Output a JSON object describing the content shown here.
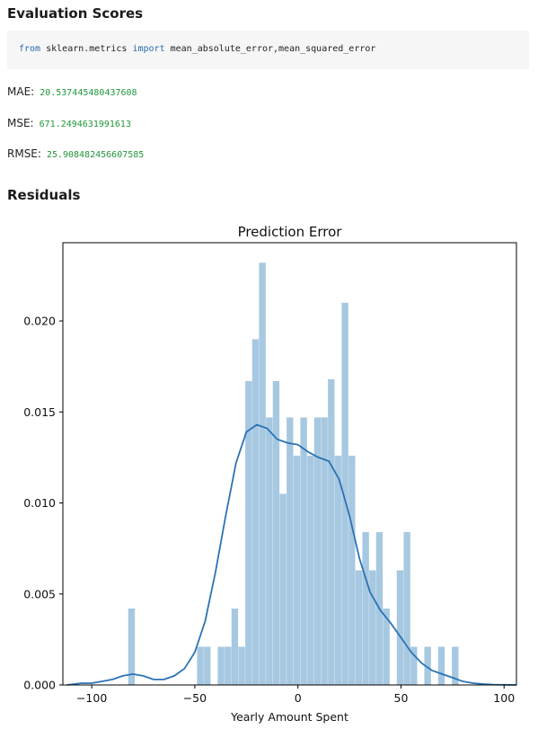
{
  "section_evaluation": {
    "title": "Evaluation Scores"
  },
  "code": {
    "kw_from": "from",
    "module": "sklearn.metrics",
    "kw_import": "import",
    "names": "mean_absolute_error,mean_squared_error"
  },
  "metrics": [
    {
      "label": "MAE:",
      "value": "20.537445480437608"
    },
    {
      "label": "MSE:",
      "value": "671.2494631991613"
    },
    {
      "label": "RMSE:",
      "value": "25.908482456607585"
    }
  ],
  "section_residuals": {
    "title": "Residuals"
  },
  "chart_data": {
    "type": "bar",
    "title": "Prediction Error",
    "xlabel": "Yearly Amount Spent",
    "ylabel": "",
    "xlim": [
      -114,
      106
    ],
    "ylim": [
      0,
      0.0243
    ],
    "xticks": [
      -100,
      -50,
      0,
      50,
      100
    ],
    "xtick_labels": [
      "−100",
      "−50",
      "0",
      "50",
      "100"
    ],
    "yticks": [
      0.0,
      0.005,
      0.01,
      0.015,
      0.02
    ],
    "ytick_labels": [
      "0.000",
      "0.005",
      "0.010",
      "0.015",
      "0.020"
    ],
    "grid": false,
    "bar_color": "#a7c8e1",
    "kde_color": "#2b73b3",
    "histogram": {
      "bin_edges": [
        -82.3,
        -78.96,
        -75.62,
        -72.28,
        -68.94,
        -65.6,
        -62.26,
        -58.92,
        -55.58,
        -52.24,
        -48.9,
        -45.56,
        -42.22,
        -38.88,
        -35.54,
        -32.2,
        -28.86,
        -25.52,
        -22.18,
        -18.84,
        -15.5,
        -12.16,
        -8.82,
        -5.48,
        -2.14,
        1.2,
        4.54,
        7.88,
        11.22,
        14.56,
        17.9,
        21.24,
        24.58,
        27.92,
        31.26,
        34.6,
        37.94,
        41.28,
        44.62,
        47.96,
        51.3,
        54.64,
        57.98,
        61.32,
        64.66,
        68.0,
        71.34,
        74.68,
        78.02
      ],
      "values": [
        0.0042,
        0,
        0,
        0,
        0,
        0,
        0,
        0,
        0,
        0,
        0.0021,
        0.0021,
        0,
        0.0021,
        0.0021,
        0.0042,
        0.0021,
        0.0167,
        0.019,
        0.0232,
        0.0147,
        0.0167,
        0.0105,
        0.0147,
        0.0126,
        0.0147,
        0.0126,
        0.0147,
        0.0147,
        0.0168,
        0.0126,
        0.021,
        0.0126,
        0.0063,
        0.0084,
        0.0063,
        0.0084,
        0.0042,
        0,
        0.0063,
        0.0084,
        0.0021,
        0,
        0.0021,
        0,
        0.0021,
        0,
        0.0021
      ]
    },
    "kde": {
      "x": [
        -112,
        -105,
        -100,
        -95,
        -90,
        -85,
        -80,
        -75,
        -70,
        -65,
        -60,
        -55,
        -50,
        -45,
        -40,
        -35,
        -30,
        -25,
        -20,
        -15,
        -10,
        -5,
        0,
        5,
        10,
        15,
        20,
        25,
        30,
        35,
        40,
        45,
        50,
        55,
        60,
        65,
        70,
        75,
        80,
        85,
        90,
        95,
        100,
        106
      ],
      "y": [
        0,
        0.0001,
        0.0001,
        0.0002,
        0.0003,
        0.0005,
        0.0006,
        0.0005,
        0.0003,
        0.0003,
        0.0005,
        0.0009,
        0.0018,
        0.0035,
        0.0062,
        0.0093,
        0.0122,
        0.0139,
        0.0143,
        0.0141,
        0.0135,
        0.0133,
        0.0132,
        0.0128,
        0.0125,
        0.0123,
        0.0113,
        0.0093,
        0.0069,
        0.0051,
        0.0041,
        0.0034,
        0.0026,
        0.0018,
        0.0012,
        0.0008,
        0.0006,
        0.0004,
        0.0002,
        0.0001,
        5e-05,
        2e-05,
        1e-05,
        0
      ]
    }
  }
}
